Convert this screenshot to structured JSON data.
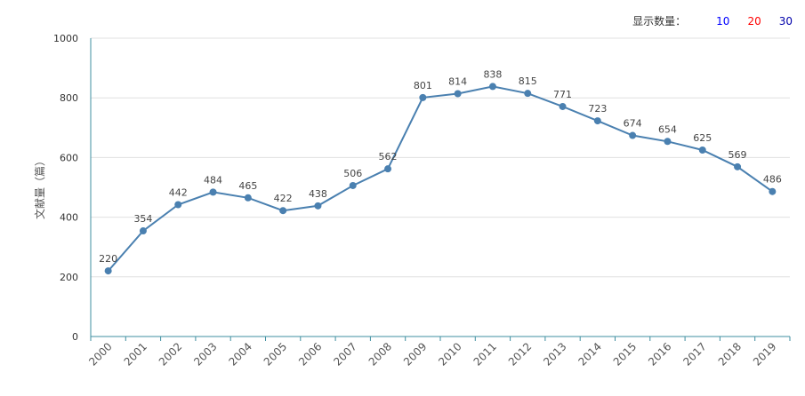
{
  "controls": {
    "label": "显示数量：",
    "options": [
      {
        "label": "10",
        "color": "#0000ff"
      },
      {
        "label": "20",
        "color": "#ff0000"
      },
      {
        "label": "30",
        "color": "#0000aa"
      }
    ]
  },
  "chart_data": {
    "type": "line",
    "title": "",
    "xlabel": "",
    "ylabel": "文献量（篇）",
    "ylim": [
      0,
      1000
    ],
    "yticks": [
      0,
      200,
      400,
      600,
      800,
      1000
    ],
    "grid": true,
    "line_color": "#4a80b0",
    "categories": [
      "2000",
      "2001",
      "2002",
      "2003",
      "2004",
      "2005",
      "2006",
      "2007",
      "2008",
      "2009",
      "2010",
      "2011",
      "2012",
      "2013",
      "2014",
      "2015",
      "2016",
      "2017",
      "2018",
      "2019"
    ],
    "series": [
      {
        "values": [
          220,
          354,
          442,
          484,
          465,
          422,
          438,
          506,
          562,
          801,
          814,
          838,
          815,
          771,
          723,
          674,
          654,
          625,
          569,
          486
        ]
      }
    ]
  }
}
